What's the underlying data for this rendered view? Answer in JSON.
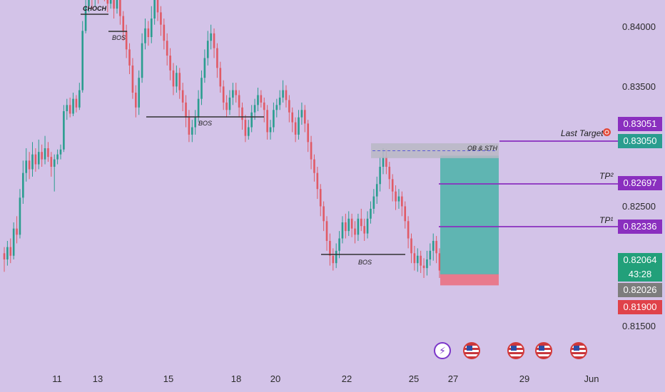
{
  "chart_data": {
    "type": "candlestick",
    "instrument_price_axis": {
      "ticks": [
        "0.84000",
        "0.83500",
        "0.82500",
        "0.81500"
      ],
      "ylim": [
        0.8125,
        0.8425
      ]
    },
    "x_ticks": [
      "11",
      "13",
      "15",
      "18",
      "20",
      "22",
      "25",
      "27",
      "29",
      "Jun"
    ],
    "price_tags": [
      {
        "label": "0.83051",
        "value": 0.83051,
        "color": "#8a2fbf"
      },
      {
        "label": "0.83050",
        "value": 0.8305,
        "color": "#2a9d8f"
      },
      {
        "label": "0.82697",
        "value": 0.82697,
        "color": "#8a2fbf"
      },
      {
        "label": "0.82336",
        "value": 0.82336,
        "color": "#8a2fbf"
      },
      {
        "label": "0.82064",
        "value": 0.82064,
        "color": "#22a07a"
      },
      {
        "label": "43:28",
        "value": 0.81985,
        "color": "#22a07a"
      },
      {
        "label": "0.82026",
        "value": 0.82026,
        "color": "#7d7d7d"
      },
      {
        "label": "0.81900",
        "value": 0.819,
        "color": "#e0424a"
      }
    ],
    "levels": [
      {
        "name": "Last Target",
        "value": 0.83051
      },
      {
        "name": "TP²",
        "value": 0.82697
      },
      {
        "name": "TP¹",
        "value": 0.82336
      }
    ],
    "annotations": {
      "choch": "CHOCH",
      "bos": "BOS",
      "ob": "OB & STH",
      "last_target": "Last Target",
      "tp2": "TP²",
      "tp1": "TP¹"
    },
    "candles": [
      [
        0.822,
        0.8215,
        0.8225,
        0.8205
      ],
      [
        0.8215,
        0.8225,
        0.823,
        0.821
      ],
      [
        0.8225,
        0.8218,
        0.8232,
        0.8212
      ],
      [
        0.8218,
        0.824,
        0.8245,
        0.8215
      ],
      [
        0.824,
        0.8235,
        0.825,
        0.8228
      ],
      [
        0.8235,
        0.8265,
        0.8272,
        0.8232
      ],
      [
        0.8265,
        0.8285,
        0.8295,
        0.826
      ],
      [
        0.8285,
        0.8295,
        0.8305,
        0.8278
      ],
      [
        0.8295,
        0.8288,
        0.8302,
        0.828
      ],
      [
        0.8288,
        0.83,
        0.831,
        0.8282
      ],
      [
        0.83,
        0.8292,
        0.8305,
        0.8286
      ],
      [
        0.8292,
        0.8302,
        0.8312,
        0.8288
      ],
      [
        0.8302,
        0.8296,
        0.8308,
        0.829
      ],
      [
        0.8296,
        0.8305,
        0.8315,
        0.8292
      ],
      [
        0.8305,
        0.8298,
        0.831,
        0.8294
      ],
      [
        0.8298,
        0.829,
        0.8302,
        0.8282
      ],
      [
        0.829,
        0.8296,
        0.83,
        0.827
      ],
      [
        0.8296,
        0.83,
        0.8304,
        0.8292
      ],
      [
        0.83,
        0.8304,
        0.8308,
        0.8296
      ],
      [
        0.8304,
        0.8335,
        0.834,
        0.8302
      ],
      [
        0.8335,
        0.834,
        0.8345,
        0.8328
      ],
      [
        0.834,
        0.8333,
        0.8346,
        0.833
      ],
      [
        0.8333,
        0.8345,
        0.835,
        0.8331
      ],
      [
        0.8345,
        0.8338,
        0.8348,
        0.8334
      ],
      [
        0.8338,
        0.8352,
        0.8358,
        0.8336
      ],
      [
        0.8352,
        0.84,
        0.8408,
        0.835
      ],
      [
        0.84,
        0.842,
        0.8428,
        0.8398
      ],
      [
        0.842,
        0.843,
        0.8438,
        0.8415
      ],
      [
        0.843,
        0.8425,
        0.8435,
        0.8418
      ],
      [
        0.8425,
        0.8432,
        0.844,
        0.842
      ],
      [
        0.8432,
        0.8428,
        0.8436,
        0.8422
      ],
      [
        0.8428,
        0.8436,
        0.8442,
        0.8425
      ],
      [
        0.8436,
        0.843,
        0.844,
        0.8424
      ],
      [
        0.843,
        0.8422,
        0.8436,
        0.8415
      ],
      [
        0.8422,
        0.843,
        0.8438,
        0.8418
      ],
      [
        0.843,
        0.8418,
        0.8435,
        0.841
      ],
      [
        0.8418,
        0.8425,
        0.8432,
        0.8414
      ],
      [
        0.8425,
        0.8412,
        0.8428,
        0.8405
      ],
      [
        0.8412,
        0.84,
        0.8416,
        0.8392
      ],
      [
        0.84,
        0.8385,
        0.8405,
        0.8378
      ],
      [
        0.8385,
        0.8372,
        0.839,
        0.8365
      ],
      [
        0.8372,
        0.835,
        0.8378,
        0.8345
      ],
      [
        0.835,
        0.8338,
        0.8356,
        0.833
      ],
      [
        0.8338,
        0.8362,
        0.8368,
        0.8332
      ],
      [
        0.8362,
        0.839,
        0.8398,
        0.8358
      ],
      [
        0.839,
        0.8402,
        0.841,
        0.8385
      ],
      [
        0.8402,
        0.8395,
        0.8408,
        0.8388
      ],
      [
        0.8395,
        0.841,
        0.842,
        0.839
      ],
      [
        0.841,
        0.8425,
        0.8432,
        0.8405
      ],
      [
        0.8425,
        0.8415,
        0.843,
        0.8408
      ],
      [
        0.8415,
        0.8405,
        0.842,
        0.8396
      ],
      [
        0.8405,
        0.8392,
        0.841,
        0.8385
      ],
      [
        0.8392,
        0.838,
        0.8398,
        0.8372
      ],
      [
        0.838,
        0.8368,
        0.8386,
        0.836
      ],
      [
        0.8368,
        0.8355,
        0.8374,
        0.8348
      ],
      [
        0.8355,
        0.8366,
        0.8372,
        0.835
      ],
      [
        0.8366,
        0.8352,
        0.837,
        0.8345
      ],
      [
        0.8352,
        0.8342,
        0.8358,
        0.8335
      ],
      [
        0.8342,
        0.833,
        0.8348,
        0.8322
      ],
      [
        0.833,
        0.8316,
        0.8336,
        0.831
      ],
      [
        0.8316,
        0.8322,
        0.8328,
        0.831
      ],
      [
        0.8322,
        0.833,
        0.8336,
        0.8316
      ],
      [
        0.833,
        0.8345,
        0.8352,
        0.8326
      ],
      [
        0.8345,
        0.8362,
        0.8368,
        0.834
      ],
      [
        0.8362,
        0.8378,
        0.8385,
        0.8358
      ],
      [
        0.8378,
        0.8392,
        0.84,
        0.8372
      ],
      [
        0.8392,
        0.8398,
        0.8405,
        0.8385
      ],
      [
        0.8398,
        0.8386,
        0.8402,
        0.8378
      ],
      [
        0.8386,
        0.837,
        0.839,
        0.8362
      ],
      [
        0.837,
        0.8355,
        0.8375,
        0.835
      ],
      [
        0.8355,
        0.8342,
        0.836,
        0.8336
      ],
      [
        0.8342,
        0.8336,
        0.8348,
        0.833
      ],
      [
        0.8336,
        0.8346,
        0.8352,
        0.8332
      ],
      [
        0.8346,
        0.8352,
        0.8358,
        0.834
      ],
      [
        0.8352,
        0.8348,
        0.8358,
        0.8342
      ],
      [
        0.8348,
        0.8338,
        0.8352,
        0.833
      ],
      [
        0.8338,
        0.8328,
        0.8342,
        0.832
      ],
      [
        0.8328,
        0.8315,
        0.8332,
        0.831
      ],
      [
        0.8315,
        0.8322,
        0.8328,
        0.8312
      ],
      [
        0.8322,
        0.8334,
        0.834,
        0.8318
      ],
      [
        0.8334,
        0.834,
        0.8345,
        0.8328
      ],
      [
        0.834,
        0.8348,
        0.8354,
        0.8335
      ],
      [
        0.8348,
        0.8342,
        0.8352,
        0.8338
      ],
      [
        0.8342,
        0.8336,
        0.8346,
        0.8326
      ],
      [
        0.8336,
        0.8318,
        0.834,
        0.8312
      ],
      [
        0.8318,
        0.8322,
        0.8328,
        0.8312
      ],
      [
        0.8322,
        0.8336,
        0.8342,
        0.8318
      ],
      [
        0.8336,
        0.834,
        0.8345,
        0.833
      ],
      [
        0.834,
        0.8346,
        0.8352,
        0.8336
      ],
      [
        0.8346,
        0.8352,
        0.836,
        0.8342
      ],
      [
        0.8352,
        0.8344,
        0.8356,
        0.8338
      ],
      [
        0.8344,
        0.8334,
        0.8348,
        0.8326
      ],
      [
        0.8334,
        0.8326,
        0.8338,
        0.8318
      ],
      [
        0.8326,
        0.8316,
        0.833,
        0.831
      ],
      [
        0.8316,
        0.833,
        0.8336,
        0.8312
      ],
      [
        0.833,
        0.8336,
        0.8342,
        0.8324
      ],
      [
        0.8336,
        0.8325,
        0.834,
        0.8318
      ],
      [
        0.8325,
        0.831,
        0.8328,
        0.8302
      ],
      [
        0.831,
        0.8296,
        0.8315,
        0.8288
      ],
      [
        0.8296,
        0.8285,
        0.83,
        0.8278
      ],
      [
        0.8285,
        0.8272,
        0.829,
        0.8264
      ],
      [
        0.8272,
        0.8258,
        0.8276,
        0.825
      ],
      [
        0.8258,
        0.8246,
        0.8262,
        0.8238
      ],
      [
        0.8246,
        0.823,
        0.825,
        0.8222
      ],
      [
        0.823,
        0.8218,
        0.8236,
        0.821
      ],
      [
        0.8218,
        0.8212,
        0.8224,
        0.8206
      ],
      [
        0.8212,
        0.8222,
        0.8228,
        0.8208
      ],
      [
        0.8222,
        0.8232,
        0.8238,
        0.8216
      ],
      [
        0.8232,
        0.8245,
        0.825,
        0.8228
      ],
      [
        0.8245,
        0.8238,
        0.8252,
        0.8232
      ],
      [
        0.8238,
        0.8248,
        0.8254,
        0.8234
      ],
      [
        0.8248,
        0.824,
        0.8252,
        0.8233
      ],
      [
        0.824,
        0.8235,
        0.8246,
        0.8228
      ],
      [
        0.8235,
        0.8248,
        0.8252,
        0.823
      ],
      [
        0.8248,
        0.8242,
        0.8256,
        0.8238
      ],
      [
        0.8242,
        0.8236,
        0.8248,
        0.823
      ],
      [
        0.8236,
        0.8248,
        0.8254,
        0.8232
      ],
      [
        0.8248,
        0.8256,
        0.8262,
        0.8244
      ],
      [
        0.8256,
        0.8266,
        0.8272,
        0.8252
      ],
      [
        0.8266,
        0.8276,
        0.8282,
        0.826
      ],
      [
        0.8276,
        0.829,
        0.8298,
        0.827
      ],
      [
        0.829,
        0.8298,
        0.8305,
        0.8284
      ],
      [
        0.8298,
        0.829,
        0.8304,
        0.8284
      ],
      [
        0.829,
        0.828,
        0.8294,
        0.8272
      ],
      [
        0.828,
        0.827,
        0.8284,
        0.8262
      ],
      [
        0.827,
        0.8262,
        0.8275,
        0.8255
      ],
      [
        0.8262,
        0.8266,
        0.8272,
        0.8256
      ],
      [
        0.8266,
        0.8258,
        0.827,
        0.825
      ],
      [
        0.8258,
        0.8246,
        0.8262,
        0.824
      ],
      [
        0.8246,
        0.8232,
        0.825,
        0.8224
      ],
      [
        0.8232,
        0.822,
        0.8236,
        0.8212
      ],
      [
        0.822,
        0.8212,
        0.8226,
        0.8206
      ],
      [
        0.8212,
        0.8218,
        0.8224,
        0.8205
      ],
      [
        0.8218,
        0.821,
        0.8222,
        0.8204
      ],
      [
        0.821,
        0.8208,
        0.8216,
        0.82
      ],
      [
        0.8208,
        0.8215,
        0.8222,
        0.8202
      ],
      [
        0.8215,
        0.8222,
        0.8228,
        0.821
      ],
      [
        0.8222,
        0.823,
        0.8236,
        0.8214
      ],
      [
        0.823,
        0.822,
        0.8234,
        0.8212
      ],
      [
        0.822,
        0.8206,
        0.8224,
        0.82
      ]
    ],
    "zones": {
      "order_block": {
        "top": 0.8309,
        "bottom": 0.8297,
        "label": "OB & STH"
      },
      "target_box": {
        "top": 0.8299,
        "bottom": 0.8203
      },
      "stop_box": {
        "top": 0.8203,
        "bottom": 0.8194
      }
    },
    "colors": {
      "up": "#2a9d8f",
      "down": "#e05a66",
      "level_line": "#8a2fbf",
      "target_fill": "#4ab3a8",
      "stop_fill": "#e87a8d",
      "ob_fill": "#b9b9c4"
    },
    "events": [
      {
        "type": "lightning",
        "icon": "lightning-icon"
      },
      {
        "type": "flag",
        "icon": "us-flag-icon"
      },
      {
        "type": "flag",
        "icon": "us-flag-icon"
      },
      {
        "type": "flag",
        "icon": "us-flag-icon"
      },
      {
        "type": "flag",
        "icon": "us-flag-icon"
      }
    ]
  }
}
